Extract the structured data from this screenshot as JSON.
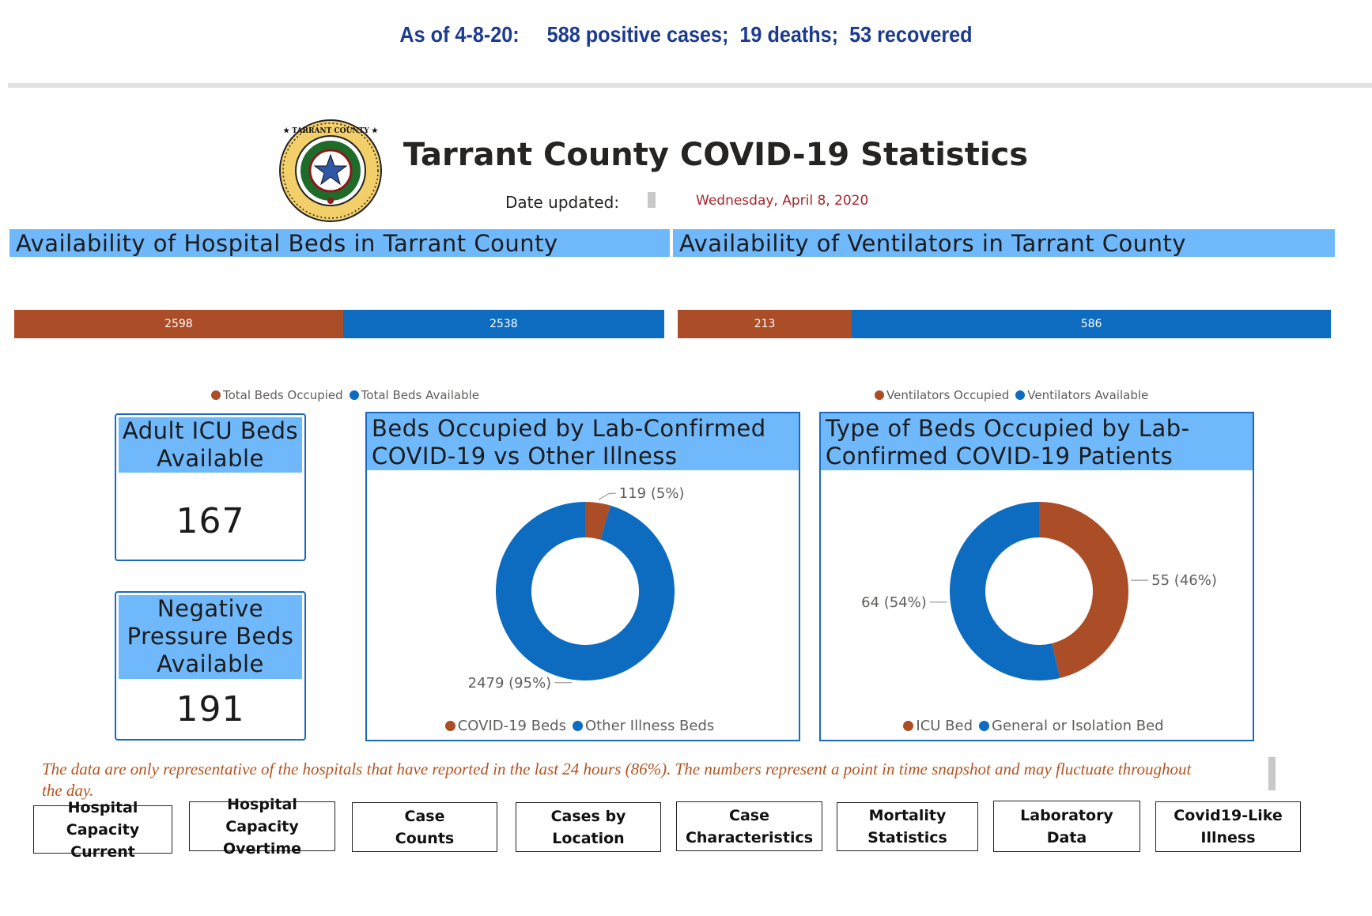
{
  "banner": {
    "prefix": "As of 4-8-20:",
    "stats": "588 positive cases;  19 deaths;  53 recovered"
  },
  "header": {
    "title": "Tarrant County COVID-19 Statistics",
    "date_label": "Date updated:",
    "date_value": "Wednesday, April 8, 2020",
    "seal_text": "TARRANT COUNTY TEXAS"
  },
  "beds_section": {
    "title": "Availability of Hospital Beds in Tarrant County",
    "occupied": 2598,
    "available": 2538,
    "occupied_label": "2598",
    "available_label": "2538",
    "legend_occupied": "Total Beds Occupied",
    "legend_available": "Total Beds Available"
  },
  "vent_section": {
    "title": "Availability of Ventilators in Tarrant County",
    "occupied": 213,
    "available": 586,
    "occupied_label": "213",
    "available_label": "586",
    "legend_occupied": "Ventilators Occupied",
    "legend_available": "Ventilators Available"
  },
  "kpi": {
    "icu_title": "Adult ICU Beds Available",
    "icu_value": "167",
    "neg_title": "Negative Pressure Beds Available",
    "neg_value": "191"
  },
  "chart_data": [
    {
      "type": "pie",
      "title": "Beds Occupied by Lab-Confirmed COVID-19 vs Other Illness",
      "categories": [
        "COVID-19 Beds",
        "Other Illness Beds"
      ],
      "values": [
        119,
        2479
      ],
      "labels": [
        "119 (5%)",
        "2479 (95%)"
      ],
      "colors": [
        "#ab4e28",
        "#0d6bc0"
      ],
      "legend": "bottom"
    },
    {
      "type": "pie",
      "title": "Type of Beds Occupied by Lab-Confirmed COVID-19 Patients",
      "categories": [
        "ICU Bed",
        "General or Isolation Bed"
      ],
      "values": [
        55,
        64
      ],
      "labels": [
        "55 (46%)",
        "64 (54%)"
      ],
      "colors": [
        "#ab4e28",
        "#0d6bc0"
      ],
      "legend": "bottom"
    }
  ],
  "colors": {
    "occupied": "#ab4e28",
    "available": "#0d6bc0",
    "header_bg": "#6fb8fc",
    "banner_text": "#1c3b8f",
    "note_text": "#b5531f"
  },
  "note": "The data are only representative of the hospitals that have reported in the last 24 hours (86%). The numbers represent a point in time snapshot and may fluctuate throughout the day.",
  "nav": [
    "Hospital Capacity\nCurrent",
    "Hospital Capacity\nOvertime",
    "Case\nCounts",
    "Cases by\nLocation",
    "Case\nCharacteristics",
    "Mortality\nStatistics",
    "Laboratory\nData",
    "Covid19-Like\nIllness"
  ]
}
